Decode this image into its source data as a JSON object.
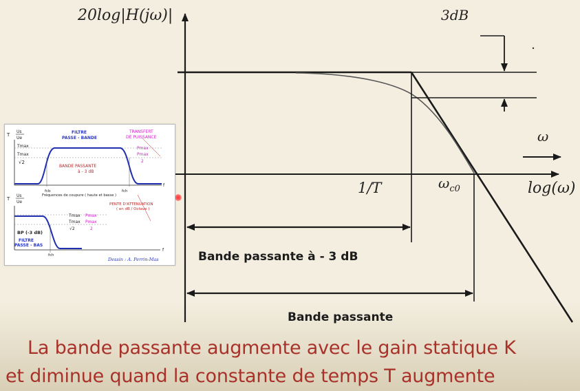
{
  "main_plot": {
    "y_axis_label": "20log|H(jω)|",
    "gap_label": "3dB",
    "x_axis_label": "log(ω)",
    "omega_label": "ω",
    "breakpoint_label": "1/T",
    "cutoff_label_main": "ω",
    "cutoff_label_sub": "c0",
    "band_3db_label": "Bande passante à - 3 dB",
    "band_label": "Bande passante"
  },
  "caption": {
    "line1": "La bande passante augmente avec le gain statique K",
    "line2": "et diminue quand la constante de temps T augmente"
  },
  "inset": {
    "top": {
      "t_symbol": "T",
      "t_num": "Us",
      "t_den": "Ue",
      "title_line1": "FILTRE",
      "title_line2": "PASSE - BANDE",
      "transfer_line1": "TRANSFERT",
      "transfer_line2": "DE PUISSANCE",
      "tmax": "Tmax",
      "tmax_frac": "Tmax",
      "sqrt2": "√2",
      "pmax": "Pmax",
      "pmax_frac": "Pmax",
      "two": "2",
      "band_line1": "BANDE PASSANTE",
      "band_line2": "à - 3 dB",
      "fcb": "fcb",
      "fch": "fch",
      "f_axis": "f",
      "cutoff_note": "Fréquences de coupure ( haute et basse )"
    },
    "bottom": {
      "t_symbol": "T",
      "t_num": "Us",
      "t_den": "Ue",
      "slope_line1": "PENTE D'ATTENUATION",
      "slope_line2": "( en dB / Octave )",
      "tmax": "Tmax",
      "tmax_frac": "Tmax",
      "sqrt2": "√2",
      "pmax": "Pmax",
      "pmax_frac": "Pmax",
      "two": "2",
      "bp_label": "BP (-3 dB)",
      "title_line1": "FILTRE",
      "title_line2": "PASSE - BAS",
      "fch": "fch",
      "f_axis": "f",
      "signature": "Dessin : A. Perrin-Mas"
    }
  },
  "colors": {
    "background": "#f3eedf",
    "axis": "#1a1a1a",
    "caption": "#a8322a",
    "inset_curve": "#1f2fb0",
    "inset_title": "#2836c8",
    "inset_magenta": "#d21ec8",
    "inset_red": "#c81e1e"
  }
}
